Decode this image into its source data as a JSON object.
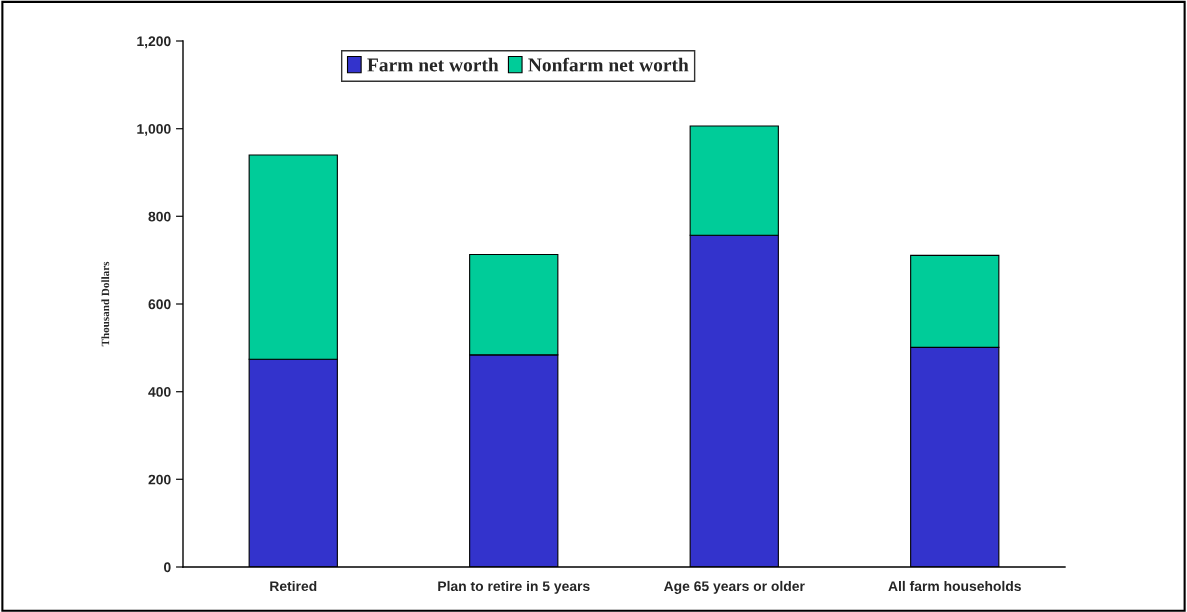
{
  "chart_data": {
    "type": "bar",
    "stacked": true,
    "ylabel": "Thousand Dollars",
    "categories": [
      "Retired",
      "Plan to retire in 5 years",
      "Age 65 years or older",
      "All farm households"
    ],
    "series": [
      {
        "name": "Farm net worth",
        "color": "#3333cc",
        "values": [
          474,
          484,
          757,
          501
        ]
      },
      {
        "name": "Nonfarm net worth",
        "color": "#00cc99",
        "values": [
          466,
          229,
          249,
          210
        ]
      }
    ],
    "ylim": [
      0,
      1200
    ],
    "yticks": [
      0,
      200,
      400,
      600,
      800,
      {
        "value": 1000,
        "label": "1,000"
      },
      {
        "value": 1200,
        "label": "1,200"
      }
    ],
    "grid": false,
    "legend": "top"
  }
}
